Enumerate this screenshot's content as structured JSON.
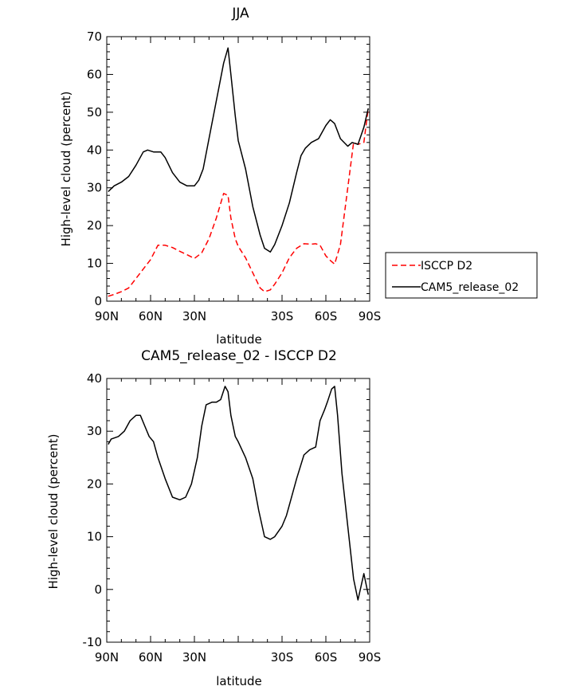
{
  "chart_data": [
    {
      "type": "line",
      "title": "JJA",
      "xlabel": "latitude",
      "ylabel": "High-level cloud (percent)",
      "xlim": [
        -90,
        90
      ],
      "ylim": [
        0,
        70
      ],
      "x_ticks": [
        -90,
        -60,
        -30,
        0,
        30,
        60,
        90
      ],
      "x_tick_labels": [
        "90N",
        "60N",
        "30N",
        "",
        "30S",
        "60S",
        "90S"
      ],
      "y_ticks": [
        0,
        10,
        20,
        30,
        40,
        50,
        60,
        70
      ],
      "y_tick_labels": [
        "0",
        "10",
        "20",
        "30",
        "40",
        "50",
        "60",
        "70"
      ],
      "grid": false,
      "legend": {
        "placement": "outside-right"
      },
      "series": [
        {
          "name": "ISCCP D2",
          "color": "#ff0000",
          "dash": "dashed",
          "x": [
            -89,
            -85,
            -80,
            -75,
            -70,
            -65,
            -60,
            -55,
            -50,
            -45,
            -40,
            -35,
            -30,
            -25,
            -20,
            -15,
            -10,
            -7,
            -5,
            -2,
            0,
            5,
            10,
            15,
            18,
            22,
            25,
            30,
            35,
            40,
            45,
            50,
            53,
            56,
            60,
            63,
            66,
            70,
            75,
            79,
            82,
            86,
            89
          ],
          "y": [
            1.3,
            1.8,
            2.5,
            3.5,
            6,
            8.5,
            11,
            14.8,
            14.8,
            14.2,
            13.2,
            12.3,
            11.3,
            12.8,
            16.5,
            22,
            28.5,
            28,
            22,
            16.5,
            14.5,
            11.5,
            7.5,
            3.5,
            2.5,
            3,
            4.5,
            7.5,
            11.5,
            14,
            15.2,
            15.1,
            15.2,
            14.8,
            12,
            10.8,
            9.8,
            15,
            30,
            42,
            41.5,
            42,
            51
          ]
        },
        {
          "name": "CAM5_release_02",
          "color": "#000000",
          "dash": "solid",
          "x": [
            -89,
            -85,
            -80,
            -75,
            -70,
            -65,
            -62,
            -58,
            -53,
            -50,
            -45,
            -40,
            -35,
            -30,
            -27,
            -24,
            -20,
            -15,
            -10,
            -7,
            -5,
            -2,
            0,
            5,
            10,
            15,
            18,
            22,
            25,
            30,
            35,
            40,
            43,
            46,
            50,
            55,
            60,
            63,
            66,
            70,
            75,
            78,
            82,
            86,
            89
          ],
          "y": [
            29,
            30.5,
            31.5,
            33,
            36,
            39.5,
            40,
            39.5,
            39.5,
            38,
            34,
            31.5,
            30.5,
            30.5,
            32,
            35,
            43,
            53,
            63,
            67,
            60,
            49,
            42.5,
            35,
            25,
            17.5,
            14,
            13,
            15,
            20,
            26,
            34,
            38.5,
            40.5,
            42,
            43,
            46.5,
            48,
            47,
            43,
            41,
            42,
            41.5,
            46,
            51
          ]
        }
      ]
    },
    {
      "type": "line",
      "title": "CAM5_release_02 - ISCCP D2",
      "xlabel": "latitude",
      "ylabel": "High-level cloud (percent)",
      "xlim": [
        -90,
        90
      ],
      "ylim": [
        -10,
        40
      ],
      "x_ticks": [
        -90,
        -60,
        -30,
        0,
        30,
        60,
        90
      ],
      "x_tick_labels": [
        "90N",
        "60N",
        "30N",
        "",
        "30S",
        "60S",
        "90S"
      ],
      "y_ticks": [
        -10,
        0,
        10,
        20,
        30,
        40
      ],
      "y_tick_labels": [
        "-10",
        "0",
        "10",
        "20",
        "30",
        "40"
      ],
      "grid": false,
      "series": [
        {
          "color": "#000000",
          "dash": "solid",
          "x": [
            -89,
            -87,
            -82,
            -78,
            -74,
            -70,
            -67,
            -64,
            -61,
            -58,
            -55,
            -50,
            -45,
            -40,
            -36,
            -32,
            -28,
            -25,
            -22,
            -18,
            -15,
            -12,
            -9,
            -7,
            -5,
            -2,
            0,
            5,
            10,
            14,
            18,
            22,
            25,
            30,
            33,
            36,
            40,
            45,
            49,
            53,
            56,
            59,
            61,
            64,
            66,
            68,
            71,
            75,
            79,
            82,
            86,
            89
          ],
          "y": [
            27.5,
            28.5,
            29,
            30,
            32,
            33,
            33,
            31,
            29,
            28,
            25,
            21,
            17.5,
            17,
            17.5,
            20,
            25,
            31,
            35,
            35.5,
            35.5,
            36,
            38.5,
            37.5,
            33,
            29,
            28,
            25,
            21,
            15,
            10,
            9.5,
            10,
            12,
            14,
            17,
            21,
            25.5,
            26.5,
            27,
            32,
            34,
            35.5,
            38,
            38.5,
            33,
            22,
            12,
            2,
            -2,
            3,
            -1
          ]
        }
      ]
    }
  ]
}
